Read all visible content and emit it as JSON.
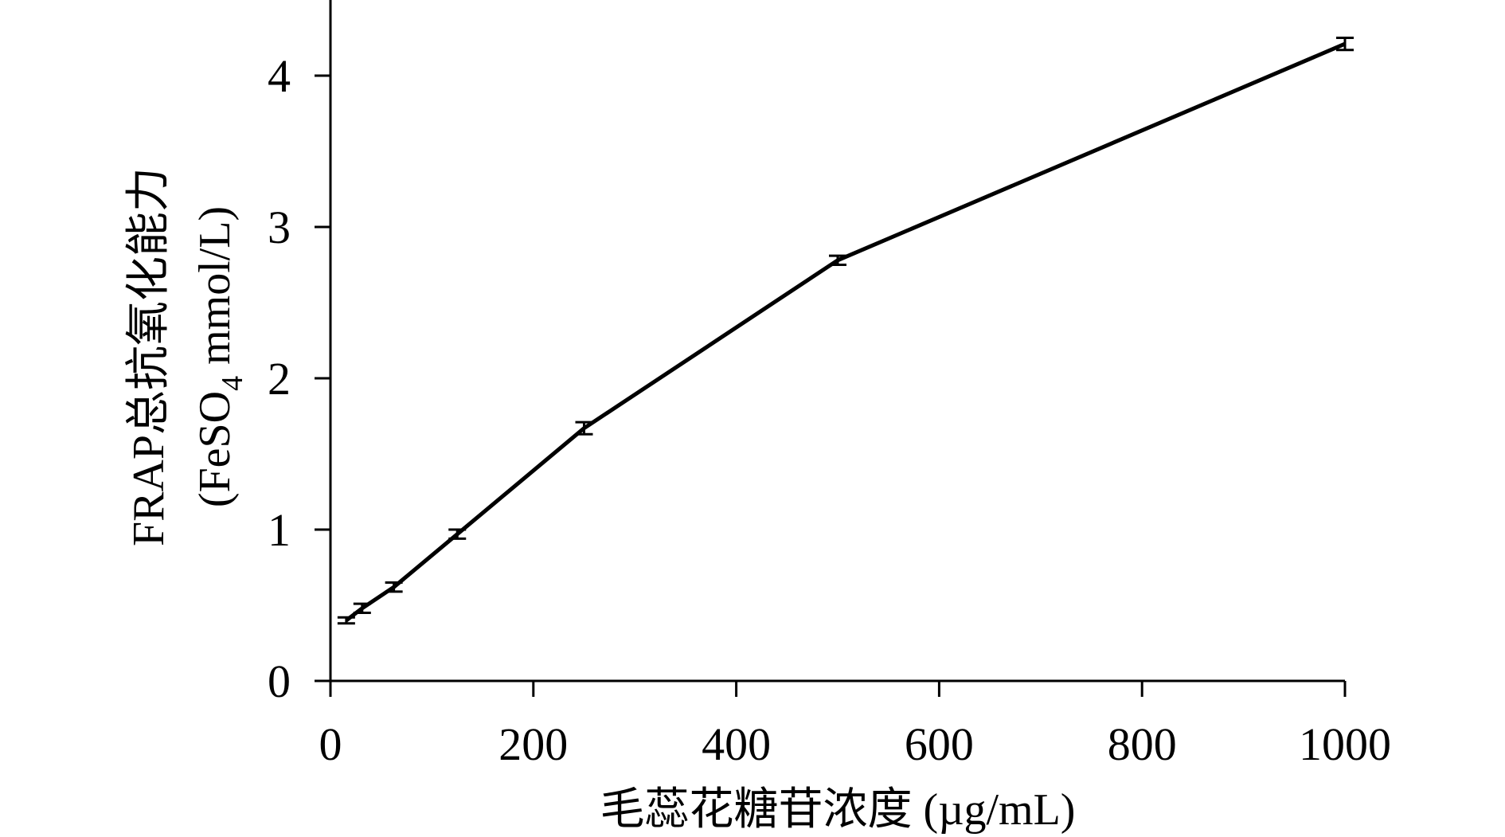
{
  "chart_data": {
    "type": "line",
    "title": "",
    "xlabel": "毛蕊花糖苷浓度 (µg/mL)",
    "ylabel_line1": "FRAP总抗氧化能力",
    "ylabel_line2_prefix": "(FeSO",
    "ylabel_line2_subscript": "4",
    "ylabel_line2_suffix": " mmol/L)",
    "xlim": [
      0,
      1000
    ],
    "ylim": [
      0,
      4.5
    ],
    "xticks": [
      0,
      200,
      400,
      600,
      800,
      1000
    ],
    "yticks": [
      0,
      1,
      2,
      3,
      4
    ],
    "grid": false,
    "line_color": "#000000",
    "series": [
      {
        "x": [
          15.6,
          31.25,
          62.5,
          125,
          250,
          500,
          1000
        ],
        "y": [
          0.4,
          0.48,
          0.62,
          0.97,
          1.67,
          2.78,
          4.21
        ],
        "err": [
          0.02,
          0.03,
          0.03,
          0.03,
          0.04,
          0.03,
          0.04
        ]
      }
    ]
  }
}
